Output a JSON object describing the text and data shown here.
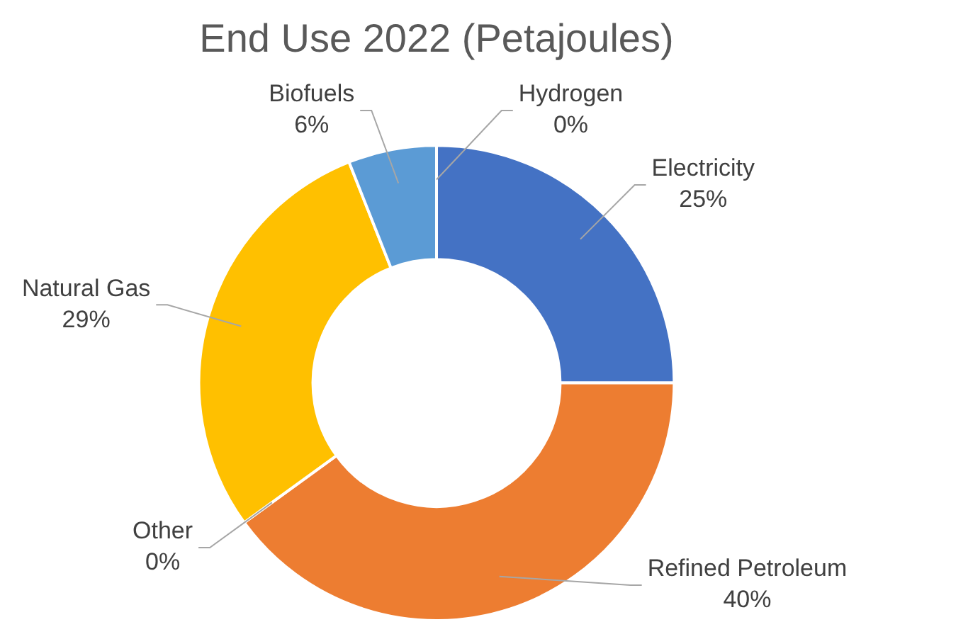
{
  "chart_data": {
    "type": "donut",
    "title": "End Use 2022 (Petajoules)",
    "categories": [
      "Electricity",
      "Refined Petroleum",
      "Other",
      "Natural Gas",
      "Biofuels",
      "Hydrogen"
    ],
    "values": [
      25,
      40,
      0,
      29,
      6,
      0
    ],
    "colors": [
      "#4472c4",
      "#ed7d31",
      "#a5a5a5",
      "#ffc000",
      "#5b9bd5",
      "#70ad47"
    ],
    "value_labels": [
      "25%",
      "40%",
      "0%",
      "29%",
      "6%",
      "0%"
    ]
  }
}
